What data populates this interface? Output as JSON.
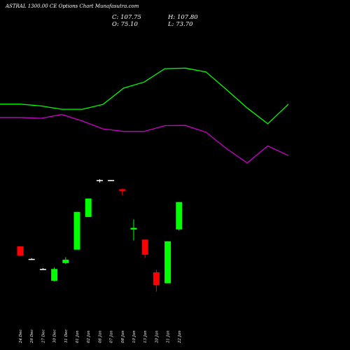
{
  "header": {
    "title": "ASTRAL 1300.00 CE Options Chart Munafasutra.com",
    "close": "C: 107.75",
    "open": "O: 75.10",
    "high": "H: 107.80",
    "low": "L: 73.70"
  },
  "colors": {
    "background": "#000000",
    "up": "#00ff00",
    "down": "#ff0000",
    "flat": "#ffffff",
    "upper_line": "#00ff00",
    "lower_line": "#cc00cc",
    "text": "#ffffff"
  },
  "chart_data": {
    "type": "candlestick",
    "categories": [
      "24 Dec",
      "26 Dec",
      "27 Dec",
      "30 Dec",
      "31 Dec",
      "01 Jan",
      "02 Jan",
      "06 Jan",
      "07 Jan",
      "08 Jan",
      "10 Jan",
      "13 Jan",
      "20 Jan",
      "21 Jan",
      "22 Jan"
    ],
    "ylim": [
      -6,
      140
    ],
    "candles": [
      {
        "open": 55,
        "high": 55,
        "low": 44,
        "close": 44
      },
      {
        "open": 40,
        "high": 41,
        "low": 39,
        "close": 40
      },
      {
        "open": 28,
        "high": 29,
        "low": 27,
        "close": 28
      },
      {
        "open": 14,
        "high": 30,
        "low": 13,
        "close": 28
      },
      {
        "open": 35,
        "high": 42,
        "low": 34,
        "close": 39
      },
      {
        "open": 51,
        "high": 96,
        "low": 51,
        "close": 96
      },
      {
        "open": 90,
        "high": 112,
        "low": 90,
        "close": 112
      },
      {
        "open": 134,
        "high": 135,
        "low": 131,
        "close": 134
      },
      {
        "open": 134,
        "high": 134,
        "low": 133,
        "close": 134
      },
      {
        "open": 123,
        "high": 124,
        "low": 116,
        "close": 121
      },
      {
        "open": 75,
        "high": 87,
        "low": 62,
        "close": 77
      },
      {
        "open": 63,
        "high": 63,
        "low": 41,
        "close": 45
      },
      {
        "open": 24,
        "high": 27,
        "low": 1,
        "close": 9
      },
      {
        "open": 11,
        "high": 61,
        "low": 11,
        "close": 61
      },
      {
        "open": 75.1,
        "high": 107.8,
        "low": 73.7,
        "close": 107.75
      }
    ],
    "indicators": [
      {
        "color": "#00ff00",
        "values": [
          300.2,
          300.2,
          291.6,
          276,
          276,
          299,
          376,
          405,
          468.5,
          471,
          453,
          369,
          282,
          207,
          300
        ]
      },
      {
        "color": "#cc00cc",
        "values": [
          237,
          237,
          233,
          251,
          220,
          183,
          171,
          171,
          198,
          199,
          167,
          89,
          21,
          102,
          56
        ]
      }
    ],
    "indicator_ylim": [
      -36,
      595
    ]
  }
}
